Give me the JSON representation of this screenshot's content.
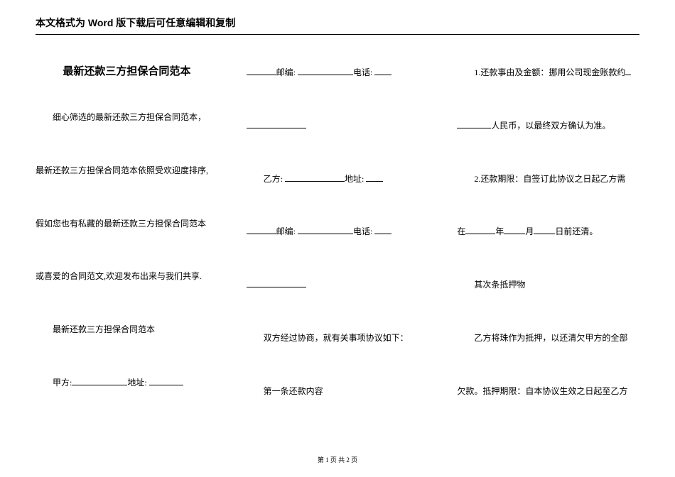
{
  "header": {
    "text": "本文格式为 Word 版下载后可任意编辑和复制"
  },
  "title": "最新还款三方担保合同范本",
  "col1": {
    "p1": "细心筛选的最新还款三方担保合同范本，",
    "p2": "最新还款三方担保合同范本依照受欢迎度排序,",
    "p3": "假如您也有私藏的最新还款三方担保合同范本",
    "p4": "或喜爱的合同范文,欢迎发布出来与我们共享.",
    "p5": "最新还款三方担保合同范本",
    "p6_prefix": "甲方:",
    "p6_mid": "地址: "
  },
  "col2": {
    "p1_prefix": "",
    "p1_label1": "邮编: ",
    "p1_label2": "电话: ",
    "p2_blank": "",
    "p3_prefix": "乙方: ",
    "p3_label": "地址: ",
    "p4_label1": "邮编: ",
    "p4_label2": "电话: ",
    "p5_blank": "",
    "p6": "双方经过协商，就有关事项协议如下：",
    "p7": "第一条还款内容"
  },
  "col3": {
    "p1": "1.还款事由及金额：挪用公司现金账款约",
    "p2_prefix": "",
    "p2_suffix": "人民币，以最终双方确认为准。",
    "p3": "2.还款期限：自签订此协议之日起乙方需",
    "p4_prefix": "在",
    "p4_y": "年",
    "p4_m": "月",
    "p4_d": "日前还清。",
    "p5": "其次条抵押物",
    "p6": "乙方将珠作为抵押，以还清欠甲方的全部",
    "p7": "欠款。抵押期限：自本协议生效之日起至乙方"
  },
  "footer": {
    "text": "第 1 页 共 2 页"
  },
  "style": {
    "page_bg": "#ffffff",
    "text_color": "#000000",
    "header_fontsize": 14,
    "title_fontsize": 15,
    "body_fontsize": 12,
    "footer_fontsize": 9,
    "line_height": 1.4,
    "col_gap": 40,
    "paragraph_gap": 58
  }
}
